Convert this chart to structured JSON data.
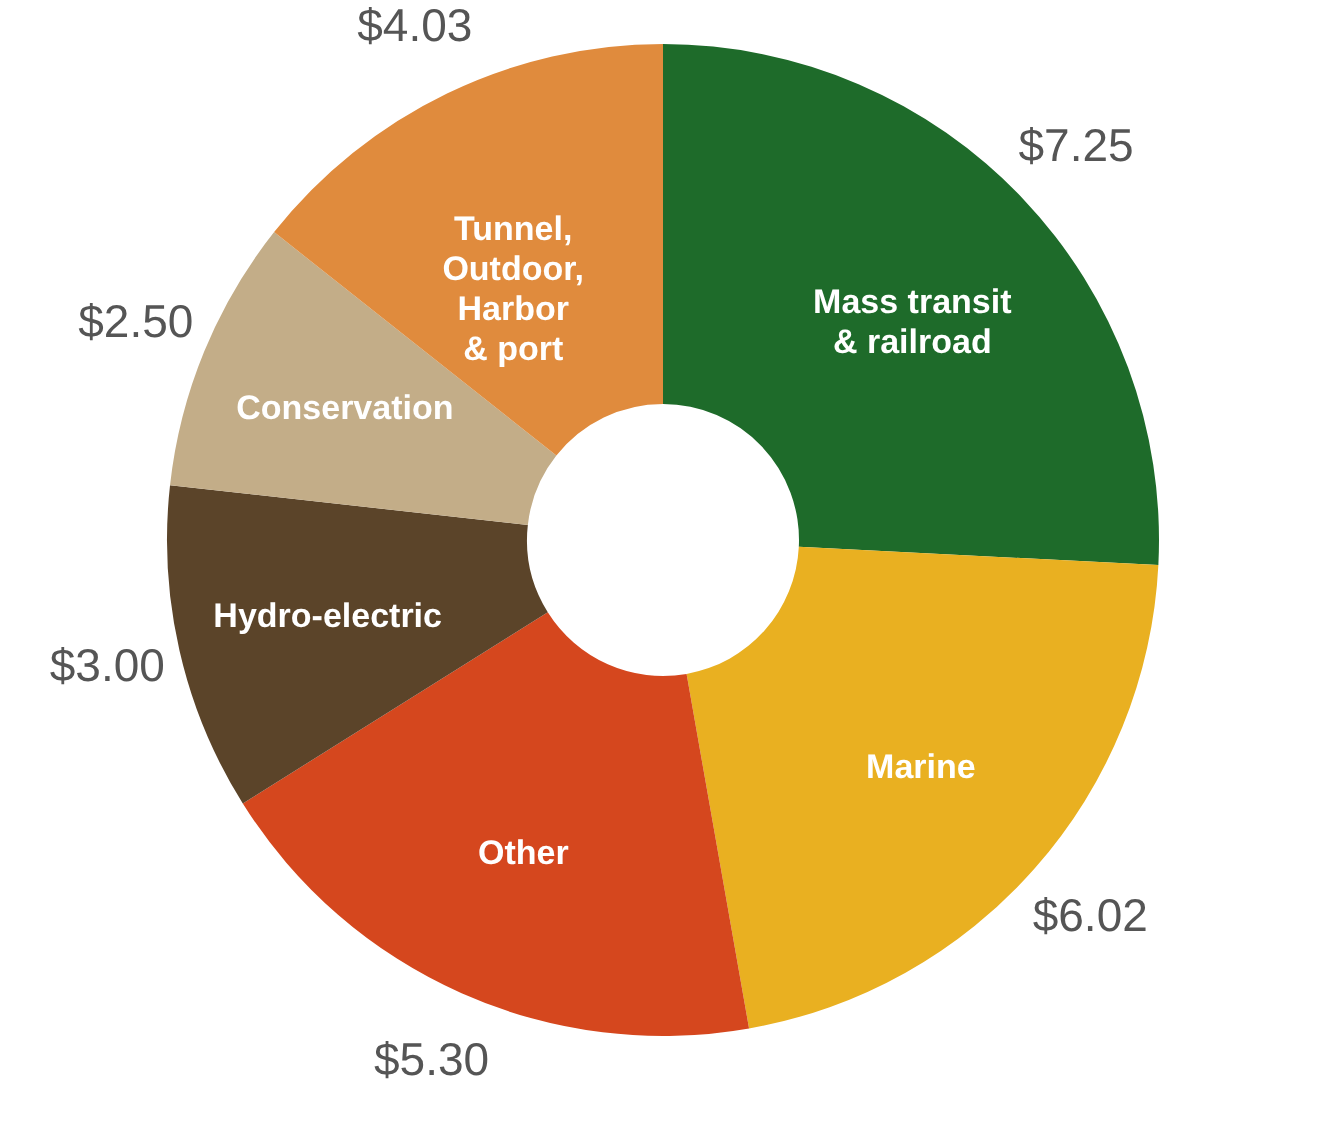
{
  "chart_data": {
    "type": "donut",
    "categories": [
      "Mass transit\n& railroad",
      "Marine",
      "Other",
      "Hydro-electric",
      "Conservation",
      "Tunnel,\nOutdoor,\nHarbor\n& port"
    ],
    "values": [
      7.25,
      6.02,
      5.3,
      3.0,
      2.5,
      4.03
    ],
    "value_labels": [
      "$7.25",
      "$6.02",
      "$5.30",
      "$3.00",
      "$2.50",
      "$4.03"
    ],
    "colors": [
      "#1e6b2a",
      "#e9b021",
      "#d5471e",
      "#5b4429",
      "#c3ad88",
      "#e08b3d"
    ],
    "legend": false
  }
}
